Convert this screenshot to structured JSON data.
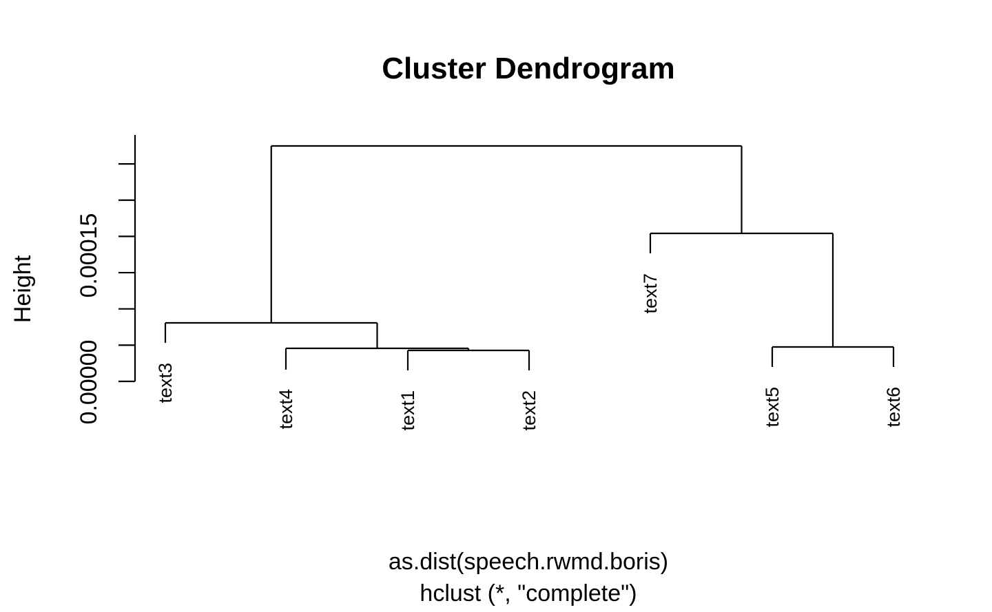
{
  "chart_data": {
    "type": "dendrogram",
    "title": "Cluster Dendrogram",
    "ylabel": "Height",
    "xlabel": "as.dist(speech.rwmd.boris)",
    "sublabel": "hclust (*, \"complete\")",
    "y_tick_labels": [
      "0.00000",
      "0.00015"
    ],
    "y_ticks": [
      -5e-05,
      0.0,
      5e-05,
      0.0001,
      0.00015,
      0.0002,
      0.00025
    ],
    "ylim": [
      -5e-05,
      0.00029
    ],
    "leaves": [
      "text3",
      "text4",
      "text1",
      "text2",
      "text7",
      "text5",
      "text6"
    ],
    "merges": [
      {
        "left": "text1",
        "right": "text2",
        "height": -1.2e-05
      },
      {
        "left": "text4",
        "right": "merge1",
        "height": -1e-05
      },
      {
        "left": "text3",
        "right": "merge2",
        "height": 2e-05
      },
      {
        "left": "text5",
        "right": "text6",
        "height": -8e-06
      },
      {
        "left": "text7",
        "right": "merge4",
        "height": 0.000127
      },
      {
        "left": "merge3",
        "right": "merge5",
        "height": 0.00023
      }
    ]
  }
}
